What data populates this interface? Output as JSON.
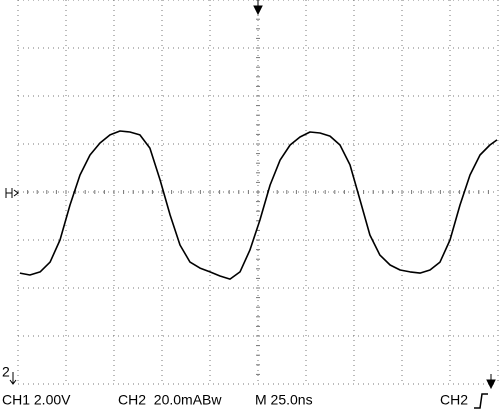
{
  "chart_data": {
    "type": "line",
    "x": [
      -124,
      -118.8,
      -113.5,
      -108.3,
      -103.1,
      -97.9,
      -92.7,
      -87.5,
      -82.3,
      -77.1,
      -71.9,
      -66.7,
      -61.5,
      -56.3,
      -51.0,
      -45.8,
      -40.6,
      -35.4,
      -30.2,
      -25.0,
      -19.8,
      -14.6,
      -9.4,
      -4.2,
      1.0,
      6.3,
      11.5,
      16.7,
      21.9,
      27.1,
      32.3,
      37.5,
      42.7,
      47.9,
      53.1,
      58.3,
      63.5,
      68.8,
      74.0,
      79.2,
      84.4,
      89.6,
      94.8,
      100.0,
      105.2,
      110.4,
      115.6,
      120.8,
      124.5
    ],
    "values": [
      -33.8,
      -34.6,
      -33.3,
      -29.2,
      -20.0,
      -5.4,
      7.1,
      15.4,
      20.4,
      23.8,
      25.4,
      25.0,
      23.8,
      18.3,
      5.0,
      -9.6,
      -22.1,
      -29.2,
      -31.7,
      -33.3,
      -35.0,
      -36.3,
      -33.3,
      -24.2,
      -11.7,
      2.9,
      13.3,
      19.6,
      22.9,
      25.0,
      24.6,
      23.3,
      19.6,
      11.3,
      -3.3,
      -17.9,
      -26.3,
      -30.4,
      -32.5,
      -33.3,
      -33.8,
      -32.5,
      -29.2,
      -20.0,
      -5.4,
      7.1,
      15.4,
      19.6,
      21.7
    ],
    "color": "#000000",
    "xlim": [
      -125,
      125
    ],
    "xticks": [
      -125,
      -100,
      -75,
      -50,
      -25,
      0,
      25,
      50,
      75,
      100,
      125
    ],
    "ylim": [
      -80,
      80
    ],
    "yticks": [
      -80,
      -60,
      -40,
      -20,
      0,
      20,
      40,
      60,
      80
    ],
    "grid": true
  },
  "status_bar": {
    "ch1_scale": "CH1 2.00V",
    "ch2_scale": "CH2  20.0mABw",
    "timebase": "M 25.0ns",
    "trigger_source": "CH2",
    "ground_marker": "2"
  }
}
